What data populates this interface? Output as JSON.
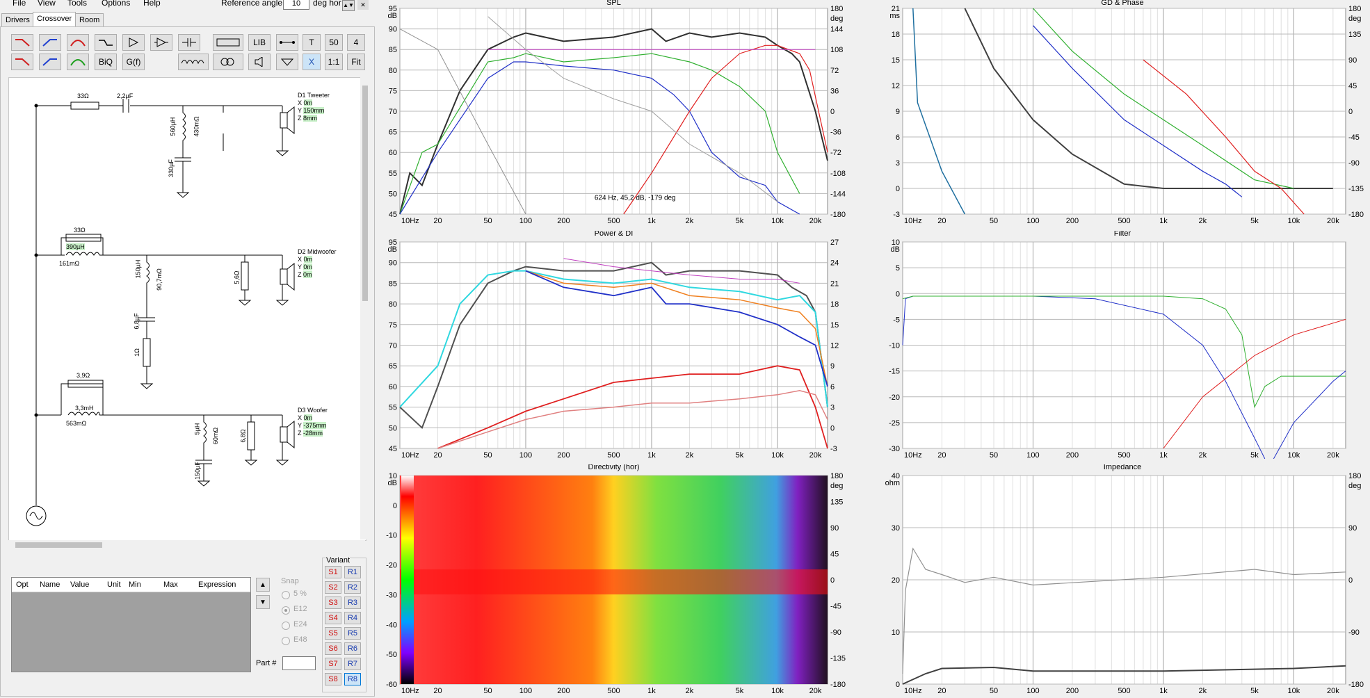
{
  "menu": {
    "items": [
      "File",
      "View",
      "Tools",
      "Options",
      "Help"
    ],
    "ref_label": "Reference angle",
    "ref_value": "10",
    "ref_unit": "deg hor"
  },
  "tabs": [
    "Drivers",
    "Crossover",
    "Room"
  ],
  "toolbar": {
    "lib": "LIB",
    "t": "T",
    "n50": "50",
    "n4": "4",
    "biq": "BiQ",
    "gf": "G(f)",
    "x": "X",
    "ratio": "1:1",
    "fit": "Fit"
  },
  "schematic": {
    "labels": [
      "33Ω",
      "2,2µF",
      "560µH",
      "430mΩ",
      "330µF",
      "33Ω",
      "390µH",
      "161mΩ",
      "150µH",
      "90,7mΩ",
      "6,8µF",
      "1Ω",
      "5,6Ω",
      "3,9Ω",
      "3,3mH",
      "563mΩ",
      "5µH",
      "60mΩ",
      "150µF",
      "6,8Ω"
    ],
    "drivers": [
      {
        "name": "D1 Tweeter",
        "x": "0m",
        "y": "150mm",
        "z": "8mm"
      },
      {
        "name": "D2 Midwoofer",
        "x": "0m",
        "y": "0m",
        "z": "0m"
      },
      {
        "name": "D3 Woofer",
        "x": "0m",
        "y": "-375mm",
        "z": "-28mm"
      }
    ],
    "coord_labels": [
      "X",
      "Y",
      "Z"
    ]
  },
  "opt_table": {
    "columns": [
      "Opt",
      "Name",
      "Value",
      "Unit",
      "Min",
      "Max",
      "Expression"
    ]
  },
  "snap": {
    "label": "Snap",
    "options": [
      "5 %",
      "E12",
      "E24",
      "E48"
    ],
    "selected": "E12"
  },
  "part_label": "Part #",
  "variant": {
    "label": "Variant",
    "s": [
      "S1",
      "S2",
      "S3",
      "S4",
      "S5",
      "S6",
      "S7",
      "S8"
    ],
    "r": [
      "R1",
      "R2",
      "R3",
      "R4",
      "R5",
      "R6",
      "R7",
      "R8"
    ],
    "selected": "R8"
  },
  "graphs": {
    "spl": {
      "title": "SPL",
      "unit_left": "dB",
      "unit_right": "deg",
      "y_left": [
        "95",
        "90",
        "85",
        "80",
        "75",
        "70",
        "65",
        "60",
        "55",
        "50",
        "45"
      ],
      "y_right": [
        "180",
        "144",
        "108",
        "72",
        "36",
        "0",
        "-36",
        "-72",
        "-108",
        "-144",
        "-180"
      ],
      "x": [
        "10Hz",
        "20",
        "50",
        "100",
        "200",
        "500",
        "1k",
        "2k",
        "5k",
        "10k",
        "20k"
      ],
      "cursor": "624 Hz, 45,2 dB, -179 deg"
    },
    "gd": {
      "title": "GD & Phase",
      "unit_left": "ms",
      "unit_right": "deg",
      "y_left": [
        "21",
        "18",
        "15",
        "12",
        "9",
        "6",
        "3",
        "0",
        "-3"
      ],
      "y_right": [
        "180",
        "135",
        "90",
        "45",
        "0",
        "-45",
        "-90",
        "-135",
        "-180"
      ],
      "x": [
        "10Hz",
        "20",
        "50",
        "100",
        "200",
        "500",
        "1k",
        "2k",
        "5k",
        "10k",
        "20k"
      ]
    },
    "power": {
      "title": "Power & DI",
      "unit_left": "dB",
      "unit_right": "",
      "y_left": [
        "95",
        "90",
        "85",
        "80",
        "75",
        "70",
        "65",
        "60",
        "55",
        "50",
        "45"
      ],
      "y_right": [
        "27",
        "24",
        "21",
        "18",
        "15",
        "12",
        "9",
        "6",
        "3",
        "0",
        "-3"
      ],
      "x": [
        "10Hz",
        "20",
        "50",
        "100",
        "200",
        "500",
        "1k",
        "2k",
        "5k",
        "10k",
        "20k"
      ]
    },
    "filter": {
      "title": "Filter",
      "unit_left": "dB",
      "y_left": [
        "10",
        "5",
        "0",
        "-5",
        "-10",
        "-15",
        "-20",
        "-25",
        "-30"
      ],
      "x": [
        "10Hz",
        "20",
        "50",
        "100",
        "200",
        "500",
        "1k",
        "2k",
        "5k",
        "10k",
        "20k"
      ]
    },
    "directivity": {
      "title": "Directivity (hor)",
      "unit_left": "dB",
      "unit_right": "deg",
      "scale": [
        "10",
        "0",
        "-10",
        "-20",
        "-30",
        "-40",
        "-50",
        "-60"
      ],
      "y_right": [
        "180",
        "135",
        "90",
        "45",
        "0",
        "-45",
        "-90",
        "-135",
        "-180"
      ],
      "x": [
        "10Hz",
        "20",
        "50",
        "100",
        "200",
        "500",
        "1k",
        "2k",
        "5k",
        "10k",
        "20k"
      ]
    },
    "impedance": {
      "title": "Impedance",
      "unit_left": "ohm",
      "unit_right": "deg",
      "y_left": [
        "40",
        "30",
        "20",
        "10",
        "0"
      ],
      "y_right": [
        "180",
        "90",
        "0",
        "-90",
        "-180"
      ],
      "x": [
        "10Hz",
        "20",
        "50",
        "100",
        "200",
        "500",
        "1k",
        "2k",
        "5k",
        "10k",
        "20k"
      ]
    }
  },
  "colors": {
    "red": "#e02020",
    "blue": "#2030c8",
    "green": "#30b030",
    "gray": "#606060",
    "cyan": "#30d8e0",
    "orange": "#f08020",
    "magenta": "#c040c0"
  }
}
